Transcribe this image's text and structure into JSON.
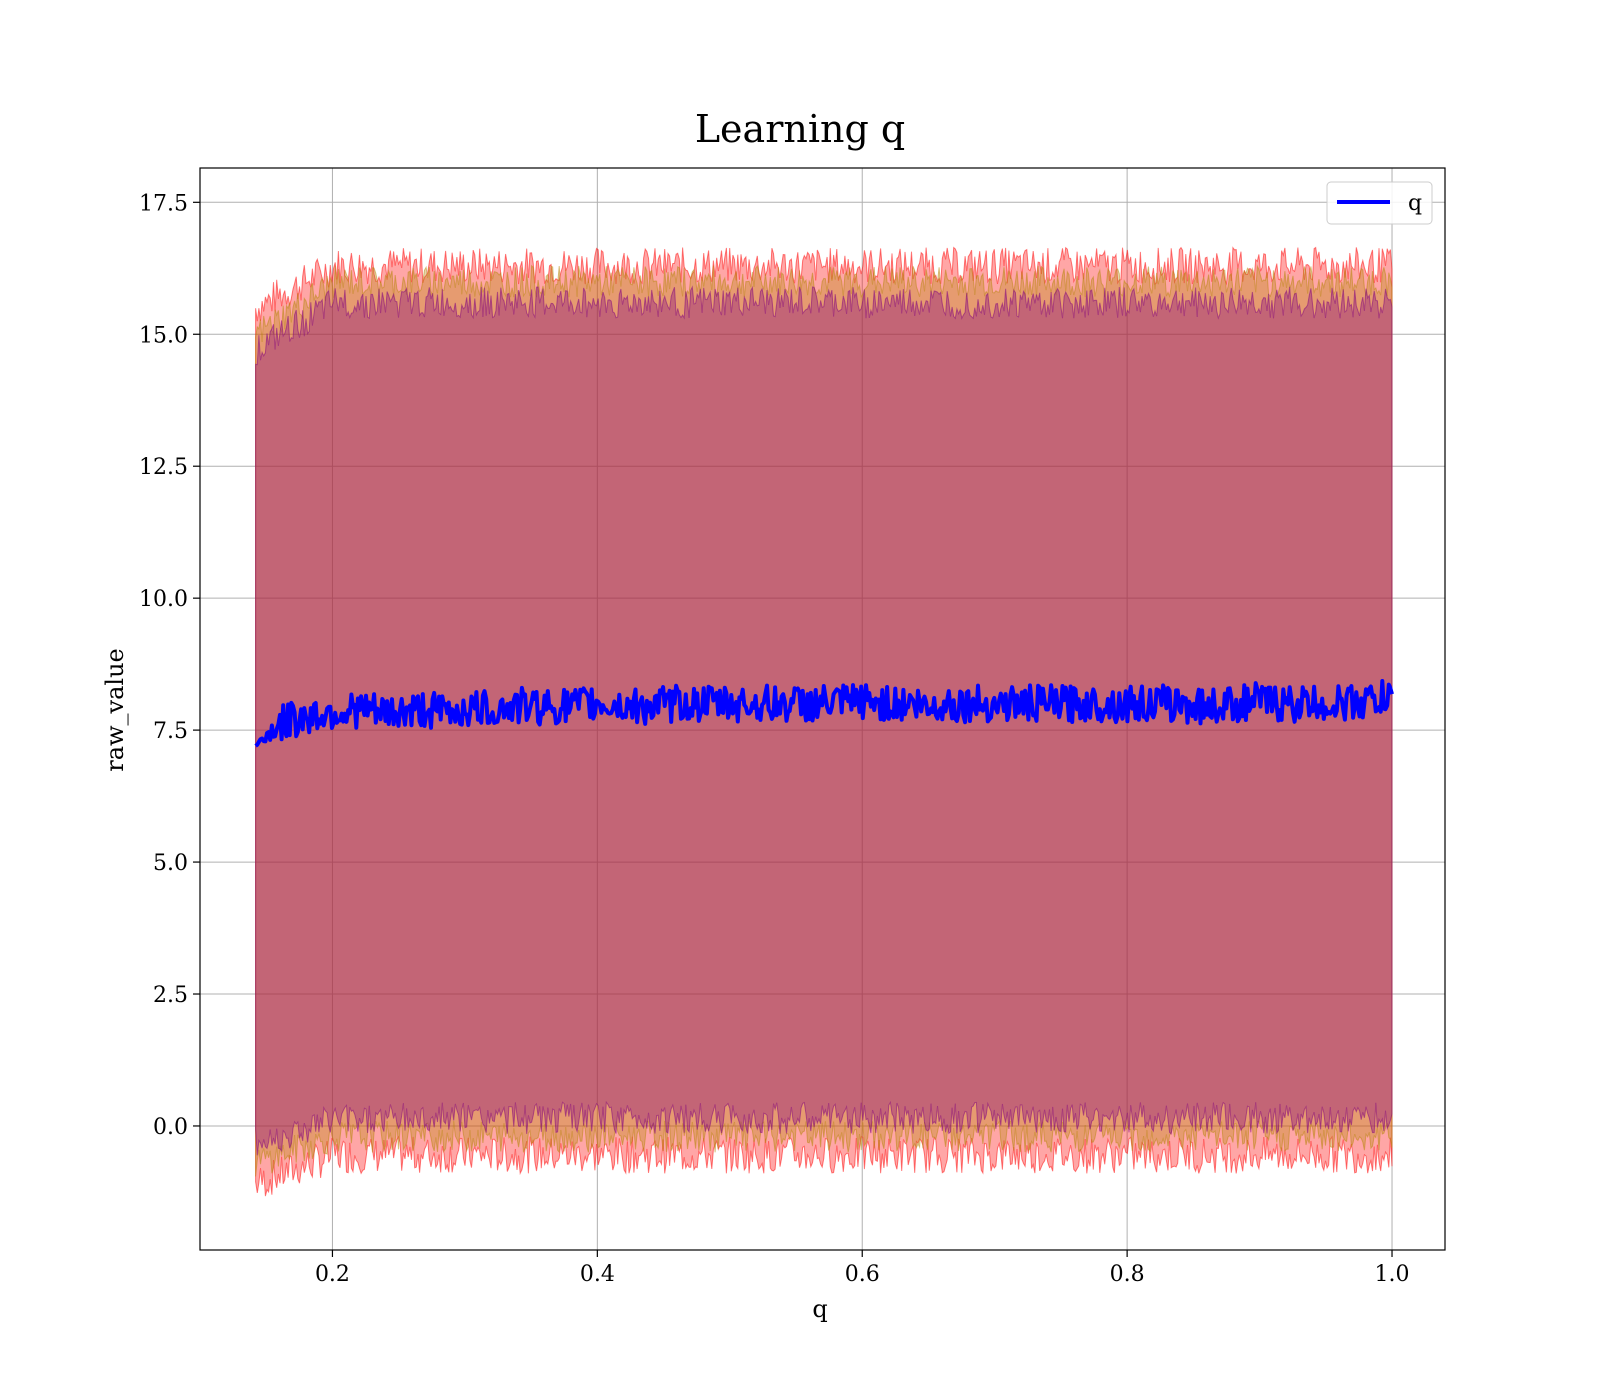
{
  "chart_data": {
    "type": "line",
    "title": "Learning q",
    "xlabel": "q",
    "ylabel": "raw_value",
    "xlim": [
      0.1,
      1.04
    ],
    "ylim": [
      -2.35,
      18.15
    ],
    "xticks": [
      0.2,
      0.4,
      0.6,
      0.8,
      1.0
    ],
    "xtick_labels": [
      "0.2",
      "0.4",
      "0.6",
      "0.8",
      "1.0"
    ],
    "yticks": [
      0.0,
      2.5,
      5.0,
      7.5,
      10.0,
      12.5,
      15.0,
      17.5
    ],
    "ytick_labels": [
      "0.0",
      "2.5",
      "5.0",
      "7.5",
      "10.0",
      "12.5",
      "15.0",
      "17.5"
    ],
    "grid": true,
    "legend_position": "top-right",
    "series": [
      {
        "name": "q",
        "color": "#0000ff",
        "x": [
          0.142,
          0.15,
          0.16,
          0.17,
          0.18,
          0.19,
          0.2,
          0.21,
          0.22,
          0.23,
          0.24,
          0.25,
          0.26,
          0.27,
          0.28,
          0.29,
          0.3,
          0.32,
          0.34,
          0.36,
          0.38,
          0.4,
          0.42,
          0.44,
          0.46,
          0.48,
          0.5,
          0.52,
          0.54,
          0.56,
          0.58,
          0.6,
          0.62,
          0.64,
          0.65,
          0.66,
          0.68,
          0.7,
          0.72,
          0.74,
          0.76,
          0.78,
          0.8,
          0.82,
          0.84,
          0.86,
          0.88,
          0.9,
          0.92,
          0.94,
          0.96,
          0.98,
          1.0
        ],
        "y": [
          7.2,
          7.4,
          7.6,
          7.7,
          7.75,
          7.8,
          7.85,
          7.85,
          7.9,
          7.85,
          7.8,
          7.85,
          7.85,
          7.9,
          7.85,
          7.85,
          7.9,
          7.9,
          7.95,
          7.95,
          7.95,
          8.0,
          7.95,
          7.95,
          8.0,
          8.0,
          8.0,
          8.0,
          8.0,
          8.0,
          8.0,
          8.05,
          8.0,
          8.0,
          7.9,
          8.0,
          8.0,
          8.0,
          8.0,
          8.0,
          8.0,
          8.0,
          8.0,
          8.0,
          8.0,
          7.95,
          8.0,
          8.05,
          8.0,
          8.0,
          8.0,
          8.05,
          8.1
        ],
        "noise_amplitude": 0.35
      }
    ],
    "bands": [
      {
        "color": "#ff0000",
        "alpha": 0.35,
        "lower_start": -1.1,
        "lower": -0.55,
        "upper_start": 15.5,
        "upper": 16.3,
        "spread": 0.35
      },
      {
        "color": "#b8860b",
        "alpha": 0.35,
        "lower_start": -0.7,
        "lower": -0.2,
        "upper_start": 15.0,
        "upper": 16.0,
        "spread": 0.3
      },
      {
        "color": "#800080",
        "alpha": 0.35,
        "lower_start": -0.35,
        "lower": 0.15,
        "upper_start": 14.7,
        "upper": 15.6,
        "spread": 0.3
      }
    ]
  }
}
